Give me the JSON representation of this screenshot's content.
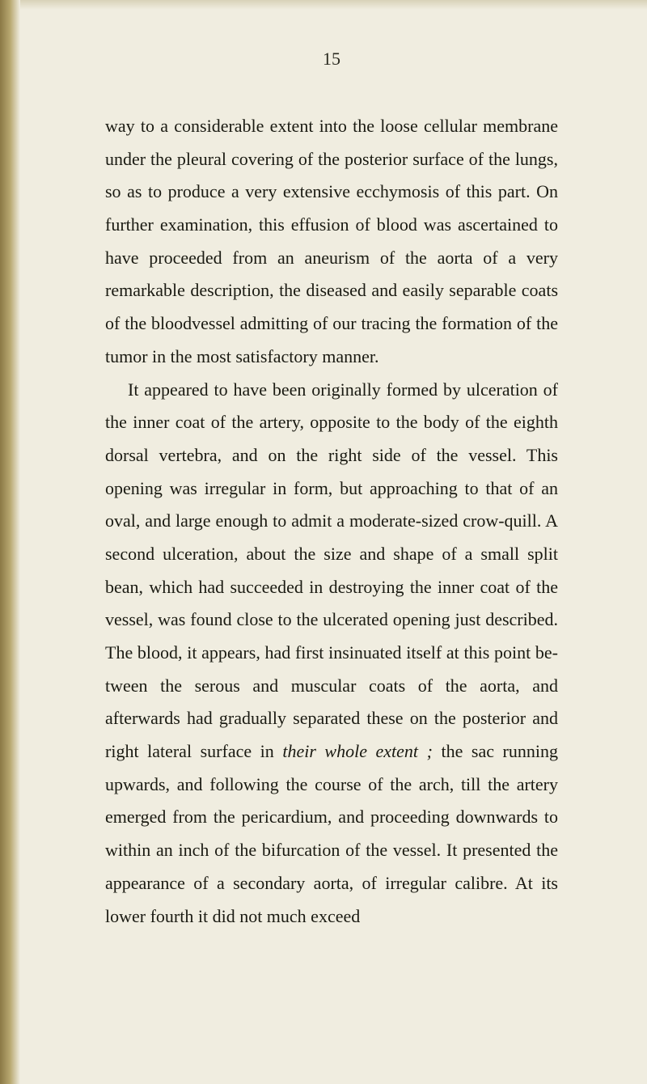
{
  "page_number": "15",
  "paragraphs": [
    {
      "indented": false,
      "text": "way to a considerable extent into the loose cellular membrane under the pleural covering of the poste­rior surface of the lungs, so as to produce a very extensive ecchymosis of this part. On further examination, this effusion of blood was ascertained to have proceeded from an aneurism of the aorta of a very remarkable description, the diseased and easily separable coats of the bloodvessel admitting of our tracing the formation of the tumor in the most satisfactory manner."
    },
    {
      "indented": true,
      "text_parts": [
        {
          "text": "It appeared to have been originally formed by ulceration of the inner coat of the artery, opposite to the body of the eighth dorsal vertebra, and on the right side of the vessel. This opening was irregu­lar in form, but approaching to that of an oval, and large enough to admit a moderate-sized crow-quill. A second ulceration, about the size and shape of a small split bean, which had succeeded in destroying the inner coat of the vessel, was found close to the ulcerated opening just described. The blood, it appears, had first insinuated itself at this point be­tween the serous and muscular coats of the aorta, and afterwards had gradually separated these on the pos­terior and right lateral surface in ",
          "italic": false
        },
        {
          "text": "their whole extent ;",
          "italic": true
        },
        {
          "text": " the sac running upwards, and following the course of the arch, till the artery emerged from the peri­cardium, and proceeding downwards to within an inch of the bifurcation of the vessel. It presented the appearance of a secondary aorta, of irregular calibre. At its lower fourth it did not much exceed",
          "italic": false
        }
      ]
    }
  ],
  "colors": {
    "background": "#f0ede0",
    "text": "#1a1a12",
    "edge_dark": "#8a7845",
    "edge_light": "#b8a870"
  },
  "typography": {
    "body_fontsize": 22,
    "line_height": 1.85,
    "font_family": "Georgia, serif"
  }
}
